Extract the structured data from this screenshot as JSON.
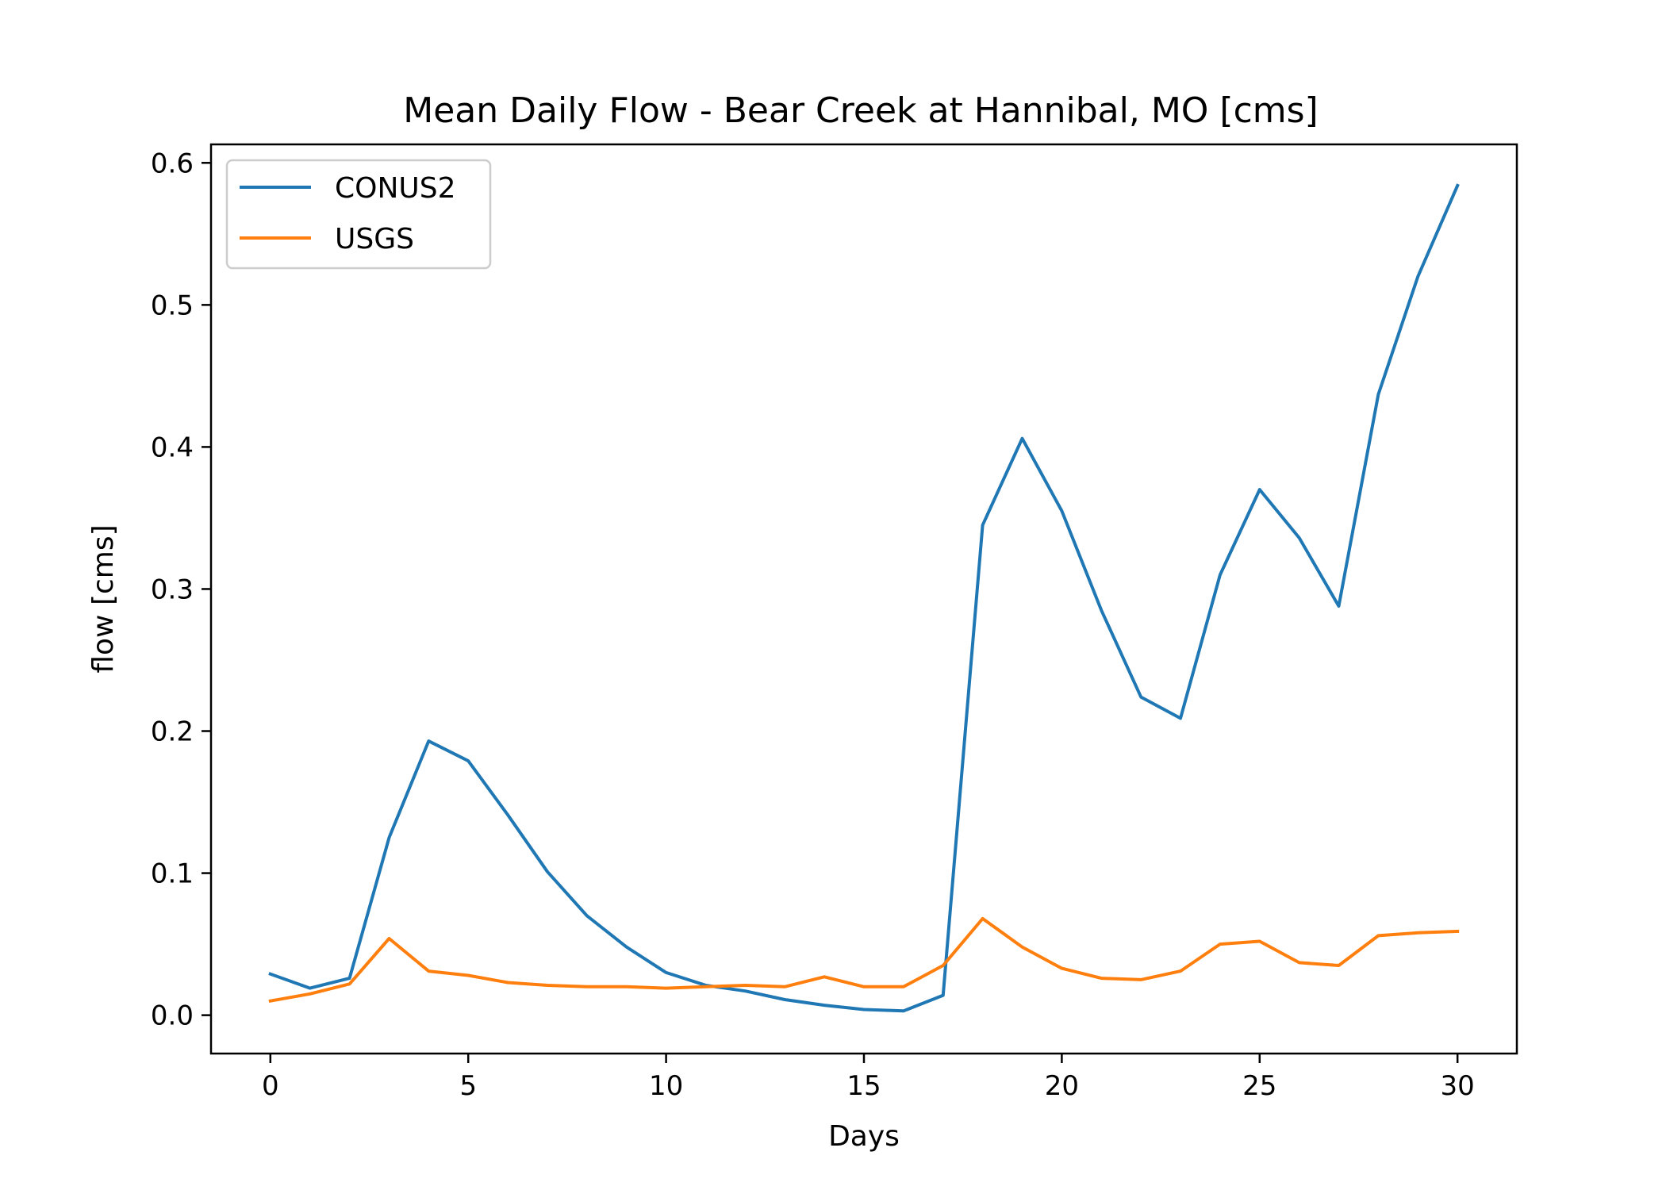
{
  "chart_data": {
    "type": "line",
    "title": "Mean Daily Flow - Bear Creek at Hannibal, MO [cms]",
    "xlabel": "Days",
    "ylabel": "flow [cms]",
    "xlim": [
      -1.5,
      31.5
    ],
    "ylim": [
      -0.027,
      0.613
    ],
    "xticks": [
      0,
      5,
      10,
      15,
      20,
      25,
      30
    ],
    "yticks": [
      0.0,
      0.1,
      0.2,
      0.3,
      0.4,
      0.5,
      0.6
    ],
    "xtick_labels": [
      "0",
      "5",
      "10",
      "15",
      "20",
      "25",
      "30"
    ],
    "ytick_labels": [
      "0.0",
      "0.1",
      "0.2",
      "0.3",
      "0.4",
      "0.5",
      "0.6"
    ],
    "grid": false,
    "legend_position": "top-left",
    "x": [
      0,
      1,
      2,
      3,
      4,
      5,
      6,
      7,
      8,
      9,
      10,
      11,
      12,
      13,
      14,
      15,
      16,
      17,
      18,
      19,
      20,
      21,
      22,
      23,
      24,
      25,
      26,
      27,
      28,
      29,
      30
    ],
    "series": [
      {
        "name": "CONUS2",
        "color": "#1f77b4",
        "values": [
          0.029,
          0.019,
          0.026,
          0.125,
          0.193,
          0.179,
          0.141,
          0.101,
          0.07,
          0.048,
          0.03,
          0.021,
          0.017,
          0.011,
          0.007,
          0.004,
          0.003,
          0.014,
          0.345,
          0.406,
          0.355,
          0.285,
          0.224,
          0.209,
          0.31,
          0.37,
          0.336,
          0.288,
          0.437,
          0.52,
          0.584
        ]
      },
      {
        "name": "USGS",
        "color": "#ff7f0e",
        "values": [
          0.01,
          0.015,
          0.022,
          0.054,
          0.031,
          0.028,
          0.023,
          0.021,
          0.02,
          0.02,
          0.019,
          0.02,
          0.021,
          0.02,
          0.027,
          0.02,
          0.02,
          0.035,
          0.068,
          0.048,
          0.033,
          0.026,
          0.025,
          0.031,
          0.05,
          0.052,
          0.037,
          0.035,
          0.056,
          0.058,
          0.059
        ]
      }
    ]
  }
}
